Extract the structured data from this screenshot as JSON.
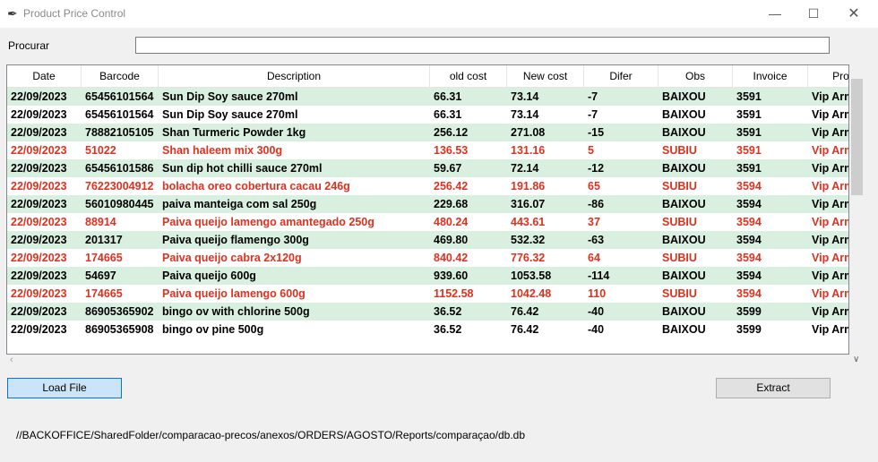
{
  "window": {
    "title": "Product Price Control",
    "minimize": "—",
    "maximize": "☐",
    "close": "✕"
  },
  "search": {
    "label": "Procurar",
    "value": ""
  },
  "table": {
    "columns": [
      "Date",
      "Barcode",
      "Description",
      "old cost",
      "New cost",
      "Difer",
      "Obs",
      "Invoice",
      "Provider"
    ],
    "rows": [
      {
        "date": "22/09/2023",
        "barcode": "65456101564",
        "description": "Sun Dip Soy sauce 270ml",
        "old": "66.31",
        "new": "73.14",
        "difer": "-7",
        "obs": "BAIXOU",
        "invoice": "3591",
        "provider": "Vip Armazem"
      },
      {
        "date": "22/09/2023",
        "barcode": "65456101564",
        "description": "Sun Dip Soy sauce 270ml",
        "old": "66.31",
        "new": "73.14",
        "difer": "-7",
        "obs": "BAIXOU",
        "invoice": "3591",
        "provider": "Vip Armazem"
      },
      {
        "date": "22/09/2023",
        "barcode": "78882105105",
        "description": "Shan Turmeric Powder 1kg",
        "old": "256.12",
        "new": "271.08",
        "difer": "-15",
        "obs": "BAIXOU",
        "invoice": "3591",
        "provider": "Vip Armazem"
      },
      {
        "date": "22/09/2023",
        "barcode": "51022",
        "description": "Shan haleem mix 300g",
        "old": "136.53",
        "new": "131.16",
        "difer": "5",
        "obs": "SUBIU",
        "invoice": "3591",
        "provider": "Vip Armazem"
      },
      {
        "date": "22/09/2023",
        "barcode": "65456101586",
        "description": "Sun dip hot chilli sauce 270ml",
        "old": "59.67",
        "new": "72.14",
        "difer": "-12",
        "obs": "BAIXOU",
        "invoice": "3591",
        "provider": "Vip Armazem"
      },
      {
        "date": "22/09/2023",
        "barcode": "76223004912",
        "description": "bolacha oreo cobertura cacau 246g",
        "old": "256.42",
        "new": "191.86",
        "difer": "65",
        "obs": "SUBIU",
        "invoice": "3594",
        "provider": "Vip Armazem"
      },
      {
        "date": "22/09/2023",
        "barcode": "56010980445",
        "description": "paiva manteiga com sal 250g",
        "old": "229.68",
        "new": "316.07",
        "difer": "-86",
        "obs": "BAIXOU",
        "invoice": "3594",
        "provider": "Vip Armazem"
      },
      {
        "date": "22/09/2023",
        "barcode": "88914",
        "description": "Paiva queijo lamengo amantegado 250g",
        "old": "480.24",
        "new": "443.61",
        "difer": "37",
        "obs": "SUBIU",
        "invoice": "3594",
        "provider": "Vip Armazem"
      },
      {
        "date": "22/09/2023",
        "barcode": "201317",
        "description": "Paiva queijo flamengo 300g",
        "old": "469.80",
        "new": "532.32",
        "difer": "-63",
        "obs": "BAIXOU",
        "invoice": "3594",
        "provider": "Vip Armazem"
      },
      {
        "date": "22/09/2023",
        "barcode": "174665",
        "description": "Paiva queijo cabra 2x120g",
        "old": "840.42",
        "new": "776.32",
        "difer": "64",
        "obs": "SUBIU",
        "invoice": "3594",
        "provider": "Vip Armazem"
      },
      {
        "date": "22/09/2023",
        "barcode": "54697",
        "description": "Paiva queijo 600g",
        "old": "939.60",
        "new": "1053.58",
        "difer": "-114",
        "obs": "BAIXOU",
        "invoice": "3594",
        "provider": "Vip Armazem"
      },
      {
        "date": "22/09/2023",
        "barcode": "174665",
        "description": "Paiva queijo lamengo 600g",
        "old": "1152.58",
        "new": "1042.48",
        "difer": "110",
        "obs": "SUBIU",
        "invoice": "3594",
        "provider": "Vip Armazem"
      },
      {
        "date": "22/09/2023",
        "barcode": "86905365902",
        "description": "bingo ov with chlorine 500g",
        "old": "36.52",
        "new": "76.42",
        "difer": "-40",
        "obs": "BAIXOU",
        "invoice": "3599",
        "provider": "Vip Armazem"
      },
      {
        "date": "22/09/2023",
        "barcode": "86905365908",
        "description": "bingo ov pine  500g",
        "old": "36.52",
        "new": "76.42",
        "difer": "-40",
        "obs": "BAIXOU",
        "invoice": "3599",
        "provider": "Vip Armazem"
      }
    ]
  },
  "buttons": {
    "load": "Load File",
    "extract": "Extract"
  },
  "footer": {
    "path": "//BACKOFFICE/SharedFolder/comparacao-precos/anexos/ORDERS/AGOSTO/Reports/comparaçao/db.db"
  },
  "colors": {
    "up_text": "#e0301e",
    "down_row_bg": "#d9f0e0",
    "load_button_bg": "#cce4f7"
  },
  "icons": {
    "app": "feather-icon",
    "scroll_down": "chevron-down-icon",
    "scroll_left": "chevron-left-icon"
  }
}
